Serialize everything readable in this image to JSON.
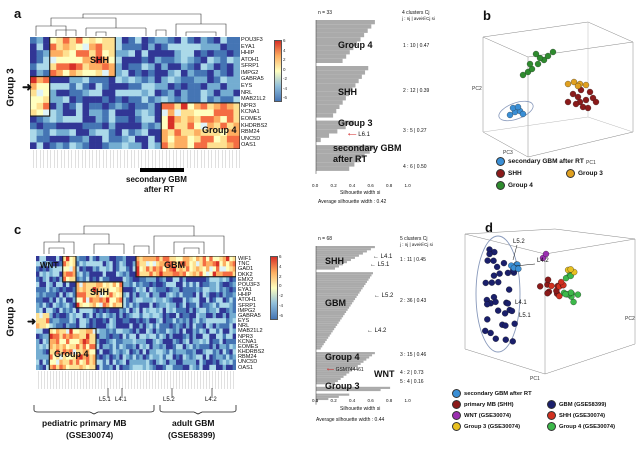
{
  "panels": {
    "a": {
      "label": "a",
      "group_tag": "Group 3",
      "boxes": [
        "SHH",
        "Group 4"
      ],
      "genes": [
        "POU3F3",
        "EYA1",
        "HHIP",
        "ATOH1",
        "SFRP1",
        "IMPG2",
        "GABRA5",
        "EYS",
        "NRL",
        "MAB21L2",
        "NPR3",
        "KCNA1",
        "EOMES",
        "KHDRBS2",
        "RBM24",
        "UNC5D",
        "OAS1"
      ],
      "bar_label_line1": "secondary GBM",
      "bar_label_line2": "after RT",
      "colorbar_ticks": [
        "6",
        "4",
        "2",
        "0",
        "-2",
        "-4",
        "-6"
      ]
    },
    "a_sil": {
      "n": "n = 33",
      "clusters_header": "4  clusters  Cj",
      "clusters_subheader": "j : nj | avei∈Cj si",
      "groups": [
        "Group 4",
        "SHH",
        "Group 3",
        "secondary GBM",
        "after RT"
      ],
      "stats": [
        "1 : 10 | 0.47",
        "2 : 12 | 0.39",
        "3 :  5 | 0.27",
        "4 :  6 | 0.50"
      ],
      "l61": "L6.1",
      "xticks": [
        "0.0",
        "0.2",
        "0.4",
        "0.6",
        "0.8",
        "1.0"
      ],
      "xlabel": "Silhouette width si",
      "avg": "Average silhouette width :  0.42"
    },
    "b": {
      "label": "b",
      "axis_pc1": "PC1",
      "axis_pc2": "PC2",
      "axis_pc3": "PC3",
      "legend": [
        {
          "label": "secondary GBM after RT",
          "color": "#3a8fd6"
        },
        {
          "label": "SHH",
          "color": "#8b1a1a"
        },
        {
          "label": "Group 3",
          "color": "#e0a020"
        },
        {
          "label": "Group 4",
          "color": "#2e8b2e"
        }
      ]
    },
    "c": {
      "label": "c",
      "group_tag": "Group 3",
      "boxes": [
        "WNT",
        "SHH",
        "GBM",
        "Group 4"
      ],
      "genes": [
        "WIF1",
        "TNC",
        "GAD1",
        "DKK2",
        "EMX2",
        "POU3F3",
        "EYA1",
        "HHIP",
        "ATOH1",
        "SFRP1",
        "IMPG2",
        "GABRA5",
        "EYS",
        "NRL",
        "MAB21L2",
        "NPR3",
        "KCNA1",
        "EOMES",
        "KHDRBS2",
        "RBM24",
        "UNC5D",
        "OAS1"
      ],
      "colorbar_ticks": [
        "6",
        "4",
        "2",
        "0",
        "-2",
        "-4",
        "-6"
      ],
      "sample_labels": [
        "L5.1",
        "L4.1",
        "L5.2",
        "L4.2"
      ],
      "bottom_left_1": "pediatric primary MB",
      "bottom_left_2": "(GSE30074)",
      "bottom_right_1": "adult GBM",
      "bottom_right_2": "(GSE58399)"
    },
    "c_sil": {
      "n": "n = 68",
      "clusters_header": "5  clusters  Cj",
      "clusters_subheader": "j : nj | avei∈Cj si",
      "groups": [
        "SHH",
        "GBM",
        "Group 4",
        "WNT",
        "Group 3"
      ],
      "stats": [
        "1 : 11 | 0.45",
        "2 : 36 | 0.43",
        "3 : 15 | 0.46",
        "4 :  2 | 0.73",
        "5 :  4 | 0.16"
      ],
      "sample_labels": [
        "L4.1",
        "L5.1",
        "L5.2",
        "L4.2"
      ],
      "gsm": "GSM744461",
      "xticks": [
        "0.0",
        "0.2",
        "0.4",
        "0.6",
        "0.8",
        "1.0"
      ],
      "xlabel": "Silhouette width si",
      "avg": "Average silhouette width :  0.44"
    },
    "d": {
      "label": "d",
      "axis_pc1": "PC1",
      "axis_pc2": "PC2",
      "sample_labels": [
        "L5.2",
        "L4.2",
        "L4.1",
        "L5.1"
      ],
      "legend": [
        {
          "label": "secondary GBM after RT",
          "color": "#3a8fd6"
        },
        {
          "label": "primary MB (SHH)",
          "color": "#8b1a1a"
        },
        {
          "label": "GBM (GSE58399)",
          "color": "#1a1f6b"
        },
        {
          "label": "WNT (GSE30074)",
          "color": "#9a2fb0"
        },
        {
          "label": "SHH (GSE30074)",
          "color": "#d03020"
        },
        {
          "label": "Group 3 (GSE30074)",
          "color": "#e8c020"
        },
        {
          "label": "Group 4 (GSE30074)",
          "color": "#3cb84a"
        }
      ]
    }
  }
}
